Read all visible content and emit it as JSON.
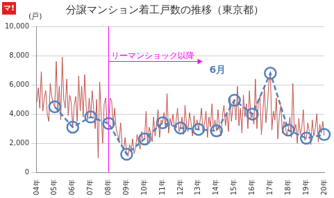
{
  "chart_data": {
    "type": "line",
    "title": "分譲マンション着工戸数の推移（東京都）",
    "logo": "マ!",
    "y_label": "(戸)",
    "categories": [
      "04年",
      null,
      null,
      null,
      null,
      null,
      null,
      null,
      null,
      null,
      null,
      null,
      "05年",
      null,
      null,
      null,
      null,
      null,
      null,
      null,
      null,
      null,
      null,
      null,
      "06年",
      null,
      null,
      null,
      null,
      null,
      null,
      null,
      null,
      null,
      null,
      null,
      "07年",
      null,
      null,
      null,
      null,
      null,
      null,
      null,
      null,
      null,
      null,
      null,
      "08年",
      null,
      null,
      null,
      null,
      null,
      null,
      null,
      null,
      null,
      null,
      null,
      "09年",
      null,
      null,
      null,
      null,
      null,
      null,
      null,
      null,
      null,
      null,
      null,
      "10年",
      null,
      null,
      null,
      null,
      null,
      null,
      null,
      null,
      null,
      null,
      null,
      "11年",
      null,
      null,
      null,
      null,
      null,
      null,
      null,
      null,
      null,
      null,
      null,
      "12年",
      null,
      null,
      null,
      null,
      null,
      null,
      null,
      null,
      null,
      null,
      null,
      "13年",
      null,
      null,
      null,
      null,
      null,
      null,
      null,
      null,
      null,
      null,
      null,
      "14年",
      null,
      null,
      null,
      null,
      null,
      null,
      null,
      null,
      null,
      null,
      null,
      "15年",
      null,
      null,
      null,
      null,
      null,
      null,
      null,
      null,
      null,
      null,
      null,
      "16年",
      null,
      null,
      null,
      null,
      null,
      null,
      null,
      null,
      null,
      null,
      null,
      "17年",
      null,
      null,
      null,
      null,
      null,
      null,
      null,
      null,
      null,
      null,
      null,
      "18年",
      null,
      null,
      null,
      null,
      null,
      null,
      null,
      null,
      null,
      null,
      null,
      "19年",
      null,
      null,
      null,
      null,
      null,
      null,
      null,
      null,
      null,
      null,
      null,
      "20年"
    ],
    "series": [
      {
        "color": "#c0504d",
        "line_style": "solid",
        "marker": "none",
        "values": [
          4800,
          5800,
          4400,
          6900,
          4200,
          5100,
          5600,
          4000,
          3500,
          6100,
          5200,
          4700,
          4500,
          7600,
          4100,
          5900,
          3600,
          7900,
          5000,
          4400,
          6400,
          3900,
          5300,
          4800,
          3100,
          4600,
          5200,
          3500,
          6600,
          4200,
          5900,
          3800,
          6700,
          4500,
          3600,
          5100,
          3800,
          5600,
          4300,
          3000,
          5000,
          1000,
          6200,
          3900,
          2000,
          4700,
          5100,
          3300,
          3350,
          5100,
          4900,
          3200,
          4400,
          3000,
          2600,
          2200,
          3400,
          1800,
          1500,
          2400,
          1250,
          1100,
          1900,
          1500,
          2300,
          1300,
          1700,
          2600,
          2000,
          1600,
          2800,
          2200,
          2300,
          4200,
          1900,
          3100,
          2700,
          2100,
          3800,
          2500,
          3300,
          4300,
          2400,
          3600,
          3400,
          4100,
          3000,
          5400,
          2700,
          3700,
          3200,
          4000,
          2900,
          3500,
          4400,
          2800,
          3050,
          3800,
          2600,
          4600,
          3300,
          2800,
          4100,
          3400,
          2500,
          3900,
          3000,
          3600,
          2950,
          3500,
          4400,
          2700,
          3300,
          4200,
          2400,
          3800,
          3100,
          4700,
          2900,
          3600,
          2850,
          4300,
          3100,
          2500,
          3900,
          4600,
          3200,
          4000,
          2800,
          5100,
          3500,
          4500,
          4950,
          3600,
          5900,
          3200,
          4400,
          2700,
          5300,
          3800,
          4700,
          3000,
          5600,
          3700,
          4000,
          3300,
          6400,
          3000,
          4800,
          5200,
          2600,
          4100,
          5800,
          3400,
          4500,
          6200,
          6800,
          2900,
          4200,
          3600,
          5100,
          2300,
          3900,
          4600,
          2700,
          3500,
          3200,
          2500,
          2900,
          3800,
          2400,
          6100,
          2800,
          3300,
          2000,
          3700,
          2600,
          3100,
          4300,
          2200,
          2350,
          3400,
          2800,
          1900,
          3600,
          2500,
          3000,
          4000,
          2100,
          3300,
          2700,
          3500,
          2600
        ]
      },
      {
        "name": "6月",
        "color": "#4f81bd",
        "line_style": "dashed",
        "marker": "circle",
        "values": [
          null,
          null,
          null,
          null,
          null,
          null,
          null,
          null,
          null,
          null,
          null,
          null,
          4500,
          null,
          null,
          null,
          null,
          null,
          null,
          null,
          null,
          null,
          null,
          null,
          3100,
          null,
          null,
          null,
          null,
          null,
          null,
          null,
          null,
          null,
          null,
          null,
          3800,
          null,
          null,
          null,
          null,
          null,
          null,
          null,
          null,
          null,
          null,
          null,
          3350,
          null,
          null,
          null,
          null,
          null,
          null,
          null,
          null,
          null,
          null,
          null,
          1250,
          null,
          null,
          null,
          null,
          null,
          null,
          null,
          null,
          null,
          null,
          null,
          2300,
          null,
          null,
          null,
          null,
          null,
          null,
          null,
          null,
          null,
          null,
          null,
          3400,
          null,
          null,
          null,
          null,
          null,
          null,
          null,
          null,
          null,
          null,
          null,
          3050,
          null,
          null,
          null,
          null,
          null,
          null,
          null,
          null,
          null,
          null,
          null,
          2950,
          null,
          null,
          null,
          null,
          null,
          null,
          null,
          null,
          null,
          null,
          null,
          2850,
          null,
          null,
          null,
          null,
          null,
          null,
          null,
          null,
          null,
          null,
          null,
          4950,
          null,
          null,
          null,
          null,
          null,
          null,
          null,
          null,
          null,
          null,
          null,
          4000,
          null,
          null,
          null,
          null,
          null,
          null,
          null,
          null,
          null,
          null,
          null,
          6800,
          null,
          null,
          null,
          null,
          null,
          null,
          null,
          null,
          null,
          null,
          null,
          2900,
          null,
          null,
          null,
          null,
          null,
          null,
          null,
          null,
          null,
          null,
          null,
          2350,
          null,
          null,
          null,
          null,
          null,
          null,
          null,
          null,
          null,
          null,
          null,
          2600
        ]
      }
    ],
    "ylim": [
      0,
      10000
    ],
    "yticks": [
      0,
      {
        "value": 2000,
        "label": "2,000"
      },
      {
        "value": 4000,
        "label": "4,000"
      },
      {
        "value": 6000,
        "label": "6,000"
      },
      {
        "value": 8000,
        "label": "8,000"
      },
      {
        "value": 10000,
        "label": "10,000"
      }
    ],
    "grid": true,
    "annotations": [
      {
        "text": "リーマンショック以降",
        "category": "08年",
        "color": "#ff00ff"
      }
    ]
  }
}
